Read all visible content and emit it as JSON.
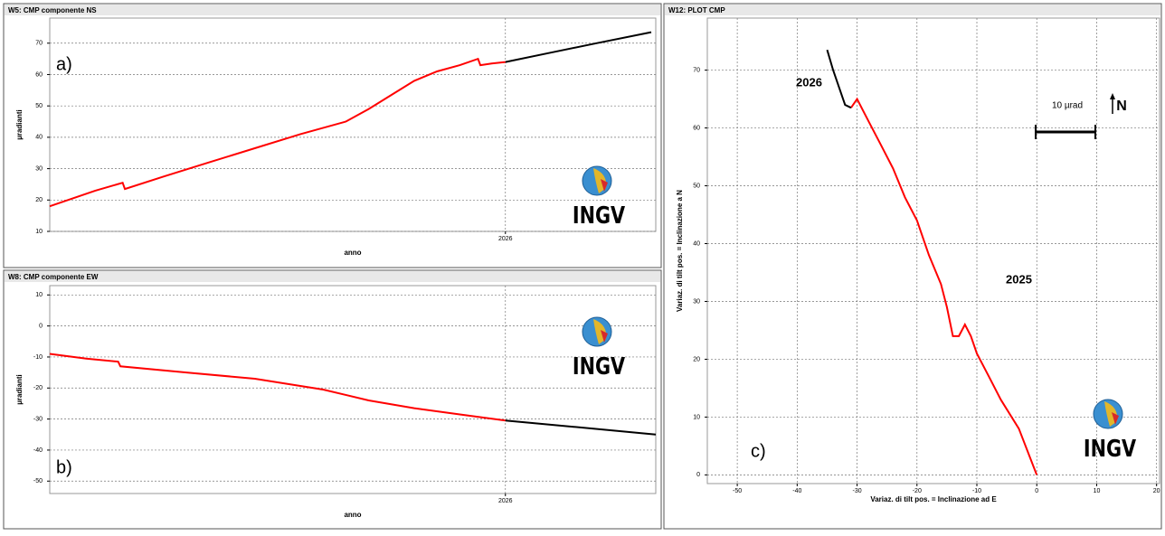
{
  "chart_data": [
    {
      "type": "line",
      "title": "W5: CMP componente NS",
      "panel_label": "a)",
      "xlabel": "anno",
      "ylabel": "µradianti",
      "logo": "INGV",
      "xlim": [
        2025.0,
        2026.33
      ],
      "xticks": [
        2026
      ],
      "ylim": [
        10,
        78
      ],
      "yticks": [
        10,
        20,
        30,
        40,
        50,
        60,
        70
      ],
      "grid": true,
      "series": [
        {
          "color": "#ff0000",
          "x": [
            2025.0,
            2025.05,
            2025.1,
            2025.16,
            2025.165,
            2025.25,
            2025.35,
            2025.45,
            2025.55,
            2025.65,
            2025.7,
            2025.75,
            2025.8,
            2025.85,
            2025.9,
            2025.94,
            2025.945,
            2025.97,
            2026.0
          ],
          "values": [
            18,
            20.5,
            23,
            25.5,
            23.5,
            27.5,
            32,
            36.5,
            41,
            45,
            49,
            53.5,
            58,
            61,
            63,
            65,
            63,
            63.5,
            64
          ]
        },
        {
          "color": "#000000",
          "x": [
            2026.0,
            2026.1,
            2026.2,
            2026.32
          ],
          "values": [
            64,
            67,
            70,
            73.5
          ]
        }
      ]
    },
    {
      "type": "line",
      "title": "W8: CMP componente EW",
      "panel_label": "b)",
      "xlabel": "anno",
      "ylabel": "µradianti",
      "logo": "INGV",
      "xlim": [
        2025.0,
        2026.33
      ],
      "xticks": [
        2026
      ],
      "ylim": [
        -54,
        13
      ],
      "yticks": [
        10,
        0,
        -10,
        -20,
        -30,
        -40,
        -50
      ],
      "grid": true,
      "series": [
        {
          "color": "#ff0000",
          "x": [
            2025.0,
            2025.08,
            2025.15,
            2025.155,
            2025.3,
            2025.45,
            2025.6,
            2025.7,
            2025.8,
            2025.9,
            2026.0
          ],
          "values": [
            -9,
            -10.5,
            -11.5,
            -13,
            -15,
            -17,
            -20.5,
            -24,
            -26.5,
            -28.5,
            -30.5
          ]
        },
        {
          "color": "#000000",
          "x": [
            2026.0,
            2026.15,
            2026.33
          ],
          "values": [
            -30.5,
            -32.5,
            -35
          ]
        }
      ]
    },
    {
      "type": "line",
      "title": "W12: PLOT CMP",
      "panel_label": "c)",
      "xlabel": "Variaz. di tilt pos. = Inclinazione ad E",
      "ylabel": "Variaz. di tilt pos. = Inclinazione a N",
      "logo": "INGV",
      "scale_label": "10 µrad",
      "north_label": "N",
      "xlim": [
        -55,
        20.5
      ],
      "xticks": [
        -50,
        -40,
        -30,
        -20,
        -10,
        0,
        10,
        20
      ],
      "ylim": [
        -1.5,
        79
      ],
      "yticks": [
        0,
        10,
        20,
        30,
        40,
        50,
        60,
        70
      ],
      "grid": true,
      "series": [
        {
          "name": "2025",
          "color": "#ff0000",
          "x": [
            0,
            -3,
            -6,
            -8,
            -10,
            -11,
            -12,
            -13,
            -14,
            -15,
            -16,
            -18,
            -20,
            -22,
            -24,
            -26,
            -28,
            -29,
            -30,
            -31
          ],
          "values": [
            0,
            8,
            13,
            17,
            21,
            24,
            26,
            24,
            24,
            29,
            33,
            38,
            44,
            48,
            53,
            57,
            61,
            63,
            65,
            63.5
          ]
        },
        {
          "name": "2026",
          "color": "#000000",
          "x": [
            -31,
            -32,
            -33,
            -34,
            -35
          ],
          "values": [
            63.5,
            64,
            67,
            70,
            73.5
          ]
        }
      ]
    }
  ]
}
